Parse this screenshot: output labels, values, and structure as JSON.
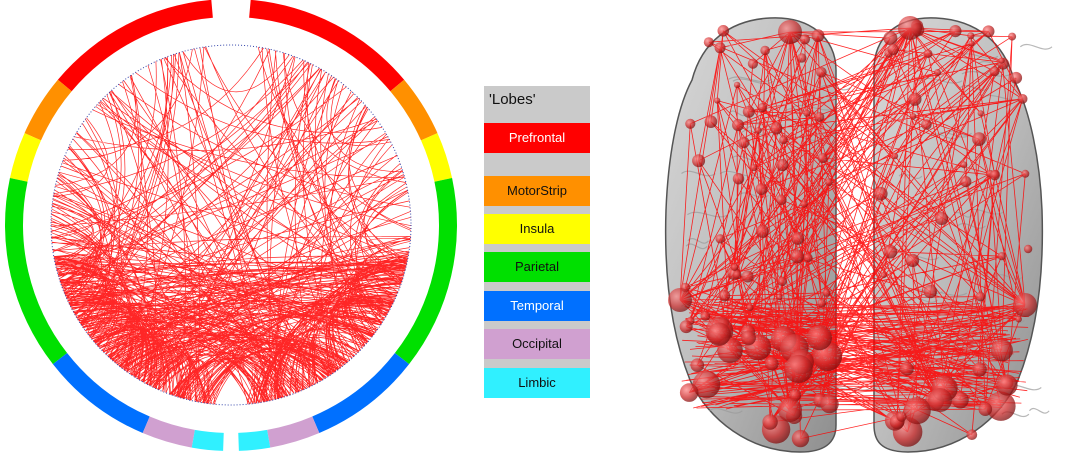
{
  "legend": {
    "title": "'Lobes'",
    "items": [
      {
        "label": "Prefrontal",
        "color": "#ff0000",
        "text_light": true
      },
      {
        "label": "MotorStrip",
        "color": "#ff9000",
        "text_light": false
      },
      {
        "label": "Insula",
        "color": "#ffff00",
        "text_light": false
      },
      {
        "label": "Parietal",
        "color": "#00e000",
        "text_light": false
      },
      {
        "label": "Temporal",
        "color": "#0070ff",
        "text_light": true
      },
      {
        "label": "Occipital",
        "color": "#d0a0d0",
        "text_light": false
      },
      {
        "label": "Limbic",
        "color": "#30f0ff",
        "text_light": false
      }
    ]
  },
  "connectogram": {
    "ring_order_right": [
      "Prefrontal",
      "MotorStrip",
      "Insula",
      "Parietal",
      "Temporal",
      "Occipital",
      "Limbic"
    ],
    "ring_order_left": [
      "Prefrontal",
      "MotorStrip",
      "Insula",
      "Parietal",
      "Temporal",
      "Occipital",
      "Limbic"
    ],
    "edge_color": "#ff0000"
  },
  "brain_view": {
    "view": "axial-top",
    "node_color": "#cc2222",
    "edge_color": "#ff0000"
  }
}
